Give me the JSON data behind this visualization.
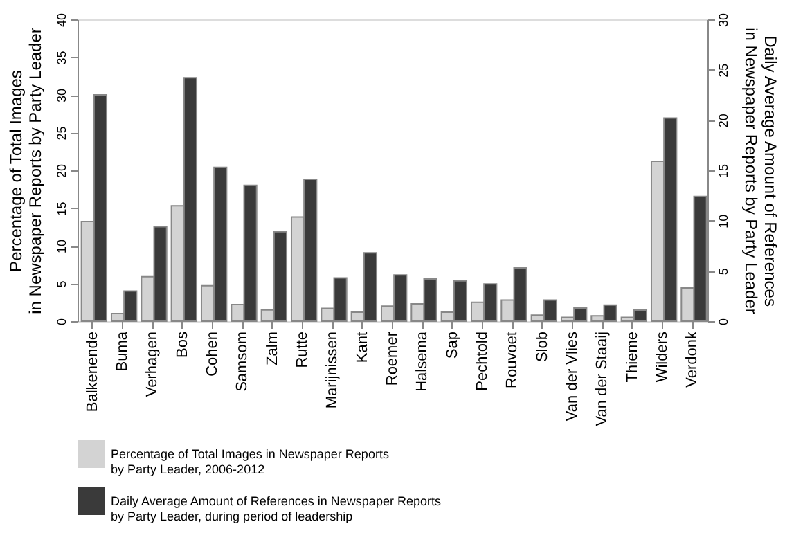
{
  "chart_data": {
    "type": "bar",
    "ylabel": "Percentage of Total Images\nin Newspaper Reports by Party Leader",
    "y2label": "Daily Average Amount of References\nin Newspaper Reports by Party Leader",
    "categories": [
      "Balkenende",
      "Buma",
      "Verhagen",
      "Bos",
      "Cohen",
      "Samsom",
      "Zalm",
      "Rutte",
      "Marijnissen",
      "Kant",
      "Roemer",
      "Halsema",
      "Sap",
      "Pechtold",
      "Rouvoet",
      "Slob",
      "Van der Vlies",
      "Van der Staaij",
      "Thieme",
      "Wilders",
      "Verdonk"
    ],
    "series": [
      {
        "name": "Percentage of Total Images in Newspaper Reports\nby Party Leader, 2006-2012",
        "color": "#d3d3d3",
        "values": [
          13.2,
          1.0,
          5.9,
          15.3,
          4.7,
          2.2,
          1.5,
          13.8,
          1.7,
          1.2,
          2.0,
          2.3,
          1.2,
          2.5,
          2.8,
          0.8,
          0.5,
          0.7,
          0.5,
          21.2,
          4.4
        ]
      },
      {
        "name": "Daily Average Amount of References in Newspaper Reports\nby Party Leader, during period of leadership",
        "color": "#3a3a3a",
        "axis": "y2",
        "values": [
          22.5,
          3.0,
          9.4,
          24.2,
          15.3,
          13.5,
          8.9,
          14.1,
          4.3,
          6.8,
          4.6,
          4.2,
          4.0,
          3.7,
          5.3,
          2.1,
          1.3,
          1.6,
          1.1,
          20.2,
          12.4
        ]
      }
    ],
    "ylim": [
      0,
      40
    ],
    "yticks": [
      0,
      5,
      10,
      15,
      20,
      25,
      30,
      35,
      40
    ],
    "y2lim": [
      0,
      30
    ],
    "y2ticks": [
      0,
      5,
      10,
      15,
      20,
      25,
      30
    ],
    "grid": false,
    "legend": "bottom"
  }
}
